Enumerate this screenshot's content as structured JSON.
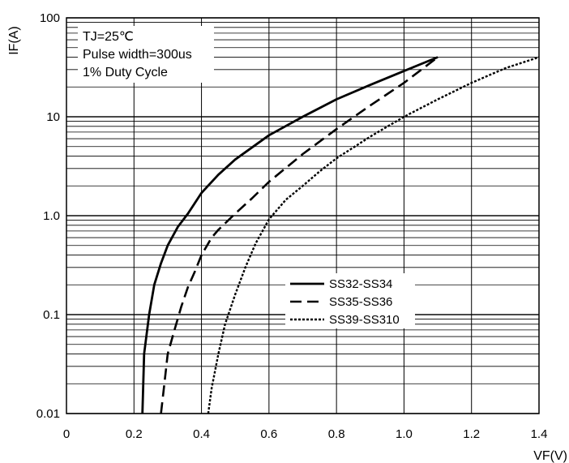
{
  "chart_data": {
    "type": "line",
    "title": "",
    "xlabel": "VF(V)",
    "ylabel": "IF(A)",
    "xlim": [
      0,
      1.4
    ],
    "ylim": [
      0.01,
      100
    ],
    "yscale": "log",
    "grid": true,
    "x_ticks": [
      0,
      0.2,
      0.4,
      0.6,
      0.8,
      1.0,
      1.2,
      1.4
    ],
    "x_tick_labels": [
      "0",
      "0.2",
      "0.4",
      "0.6",
      "0.8",
      "1.0",
      "1.2",
      "1.4"
    ],
    "y_ticks": [
      0.01,
      0.1,
      1,
      10,
      100
    ],
    "y_tick_labels": [
      "0.01",
      "0.1",
      "1.0",
      "10",
      "100"
    ],
    "annotations": [
      "TJ=25℃",
      "Pulse width=300us",
      "1% Duty Cycle"
    ],
    "legend_position": "center-right",
    "series": [
      {
        "name": "SS32-SS34",
        "style": "solid",
        "x": [
          0.225,
          0.23,
          0.245,
          0.26,
          0.28,
          0.3,
          0.33,
          0.36,
          0.4,
          0.45,
          0.5,
          0.6,
          0.7,
          0.8,
          0.9,
          1.0,
          1.1
        ],
        "y": [
          0.01,
          0.04,
          0.1,
          0.2,
          0.33,
          0.5,
          0.77,
          1.05,
          1.7,
          2.6,
          3.7,
          6.5,
          10,
          15,
          21,
          29,
          40
        ]
      },
      {
        "name": "SS35-SS36",
        "style": "dashed",
        "x": [
          0.28,
          0.29,
          0.3,
          0.32,
          0.34,
          0.36,
          0.38,
          0.4,
          0.43,
          0.45,
          0.5,
          0.55,
          0.6,
          0.7,
          0.8,
          0.9,
          1.0,
          1.1
        ],
        "y": [
          0.01,
          0.02,
          0.04,
          0.07,
          0.12,
          0.19,
          0.27,
          0.4,
          0.6,
          0.72,
          1.05,
          1.5,
          2.2,
          4.2,
          7.5,
          13,
          22,
          40
        ]
      },
      {
        "name": "SS39-SS310",
        "style": "dotted",
        "x": [
          0.42,
          0.43,
          0.45,
          0.47,
          0.5,
          0.53,
          0.56,
          0.6,
          0.65,
          0.7,
          0.75,
          0.8,
          0.9,
          1.0,
          1.1,
          1.2,
          1.3,
          1.4
        ],
        "y": [
          0.01,
          0.018,
          0.04,
          0.08,
          0.16,
          0.3,
          0.52,
          0.92,
          1.45,
          2.0,
          2.8,
          3.8,
          6.3,
          10,
          15,
          22,
          31,
          40
        ]
      }
    ]
  }
}
